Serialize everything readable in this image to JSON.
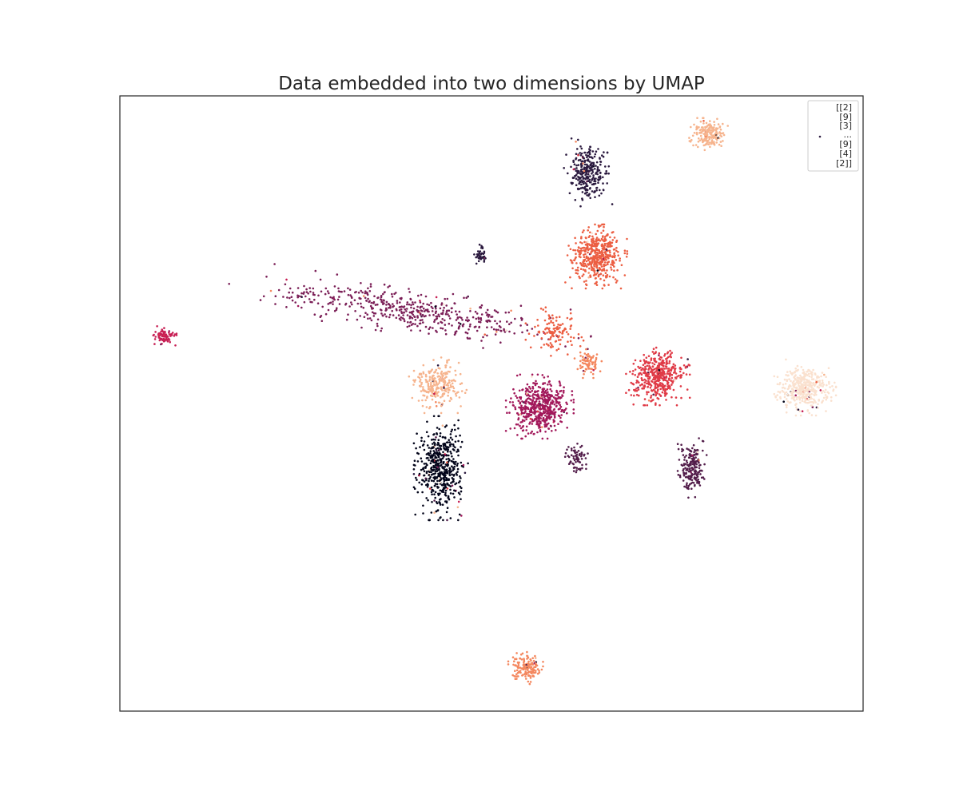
{
  "chart_data": {
    "type": "scatter",
    "title": "Data embedded into two dimensions by UMAP",
    "xlabel": "",
    "ylabel": "",
    "xlim": [
      0,
      100
    ],
    "ylim": [
      0,
      100
    ],
    "xticks": [],
    "yticks": [],
    "grid": false,
    "legend": {
      "placement": "top-right",
      "lines": [
        "[[2]",
        " [9]",
        " [3]",
        " ...",
        " [9]",
        " [4]",
        " [2]]"
      ]
    },
    "colormap": [
      "#03051a",
      "#2b1a3f",
      "#531e4b",
      "#7b1f57",
      "#a2195b",
      "#c71f54",
      "#e03b47",
      "#ec5f43",
      "#f4875e",
      "#f6b48e",
      "#fae1cf"
    ],
    "clusters": [
      {
        "label": 10,
        "cx": 92.2,
        "cy": 52.6,
        "rx": 3.2,
        "ry": 3.5,
        "n": 420
      },
      {
        "label": 9,
        "cx": 79.2,
        "cy": 93.8,
        "rx": 2.0,
        "ry": 2.0,
        "n": 200
      },
      {
        "label": 1,
        "cx": 63.0,
        "cy": 87.9,
        "rx": 2.5,
        "ry": 4.5,
        "n": 280
      },
      {
        "label": 7,
        "cx": 64.1,
        "cy": 73.9,
        "rx": 3.2,
        "ry": 4.0,
        "n": 480
      },
      {
        "label": 1,
        "cx": 48.5,
        "cy": 74.0,
        "rx": 0.8,
        "ry": 1.4,
        "n": 40
      },
      {
        "label": 3,
        "cx": 39.0,
        "cy": 65.0,
        "rx": 19.0,
        "ry": 3.0,
        "n": 520,
        "tilt": -0.2
      },
      {
        "label": 5,
        "cx": 5.8,
        "cy": 61.0,
        "rx": 1.4,
        "ry": 1.2,
        "n": 80
      },
      {
        "label": 9,
        "cx": 42.8,
        "cy": 53.0,
        "rx": 3.0,
        "ry": 3.5,
        "n": 250
      },
      {
        "label": 0,
        "cx": 43.2,
        "cy": 39.5,
        "rx": 2.8,
        "ry": 6.5,
        "n": 520
      },
      {
        "label": 4,
        "cx": 56.5,
        "cy": 49.5,
        "rx": 3.5,
        "ry": 4.0,
        "n": 560
      },
      {
        "label": 6,
        "cx": 72.4,
        "cy": 54.4,
        "rx": 3.3,
        "ry": 3.6,
        "n": 450
      },
      {
        "label": 2,
        "cx": 77.0,
        "cy": 39.5,
        "rx": 1.5,
        "ry": 4.0,
        "n": 200
      },
      {
        "label": 2,
        "cx": 61.6,
        "cy": 41.0,
        "rx": 1.3,
        "ry": 2.2,
        "n": 70
      },
      {
        "label": 8,
        "cx": 54.6,
        "cy": 7.0,
        "rx": 1.8,
        "ry": 2.0,
        "n": 160
      },
      {
        "label": 7,
        "cx": 58.5,
        "cy": 61.5,
        "rx": 3.0,
        "ry": 3.5,
        "n": 120
      },
      {
        "label": 8,
        "cx": 63.0,
        "cy": 56.5,
        "rx": 1.4,
        "ry": 1.8,
        "n": 80
      }
    ]
  }
}
